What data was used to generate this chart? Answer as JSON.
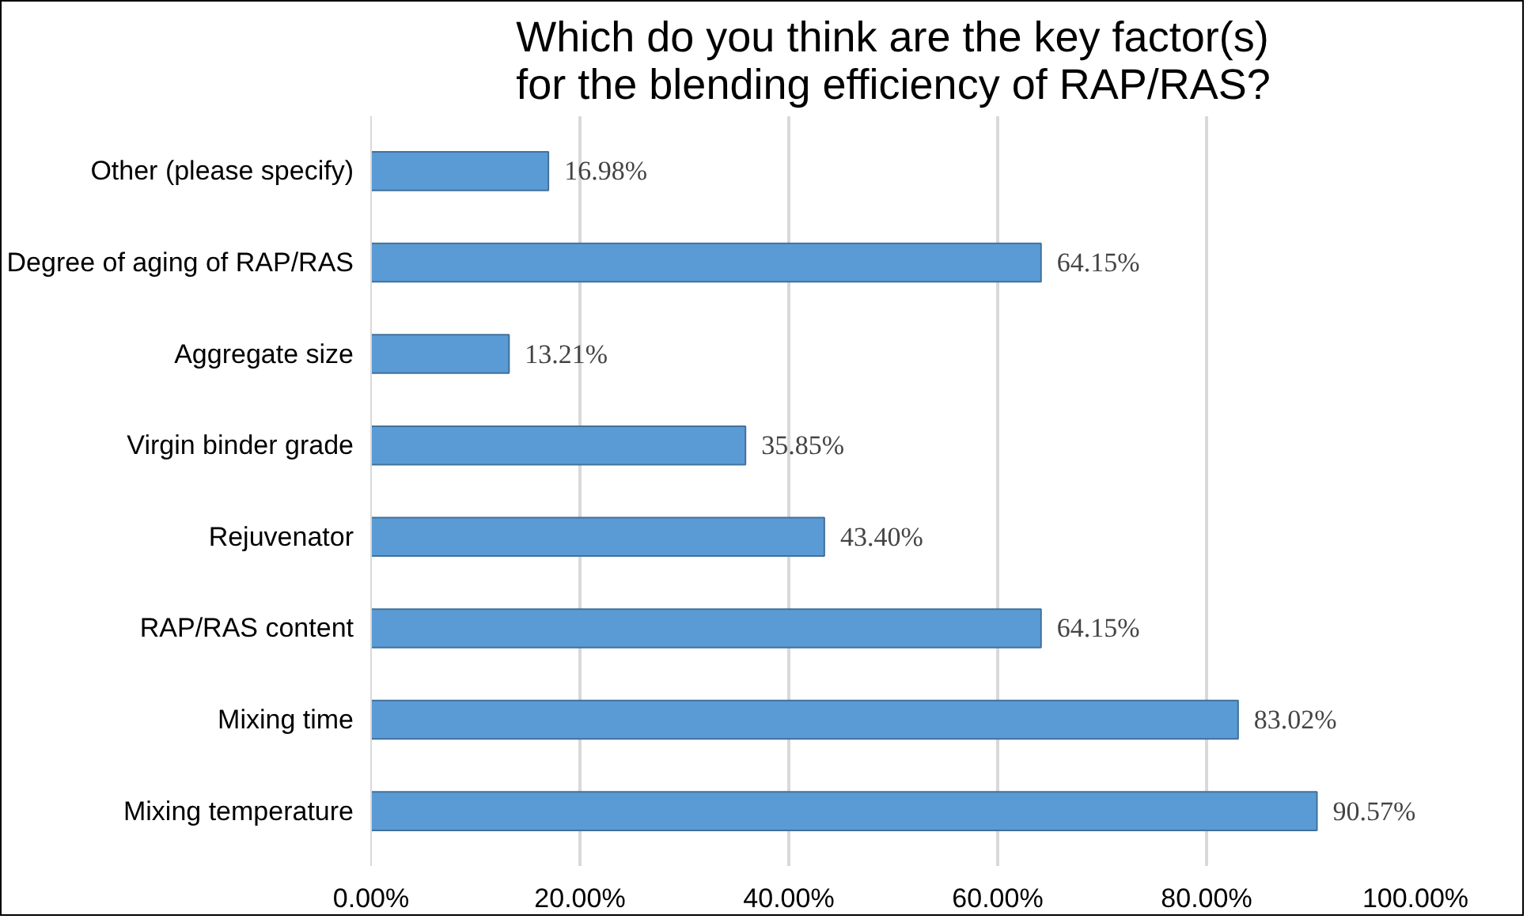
{
  "chart_data": {
    "type": "bar",
    "orientation": "horizontal",
    "title": "Which do you think are the key factor(s) for the blending efficiency of RAP/RAS?",
    "categories": [
      "Other (please specify)",
      "Degree of aging of RAP/RAS",
      "Aggregate size",
      "Virgin binder grade",
      "Rejuvenator",
      "RAP/RAS content",
      "Mixing time",
      "Mixing temperature"
    ],
    "values": [
      16.98,
      64.15,
      13.21,
      35.85,
      43.4,
      64.15,
      83.02,
      90.57
    ],
    "value_labels": [
      "16.98%",
      "64.15%",
      "13.21%",
      "35.85%",
      "43.40%",
      "64.15%",
      "83.02%",
      "90.57%"
    ],
    "color": "#5b9bd5",
    "xlim": [
      0,
      100
    ],
    "xticks": [
      {
        "value": 0,
        "label": "0.00%"
      },
      {
        "value": 20,
        "label": "20.00%"
      },
      {
        "value": 40,
        "label": "40.00%"
      },
      {
        "value": 60,
        "label": "60.00%"
      },
      {
        "value": 80,
        "label": "80.00%"
      },
      {
        "value": 100,
        "label": "100.00%"
      }
    ],
    "grid": "x"
  }
}
